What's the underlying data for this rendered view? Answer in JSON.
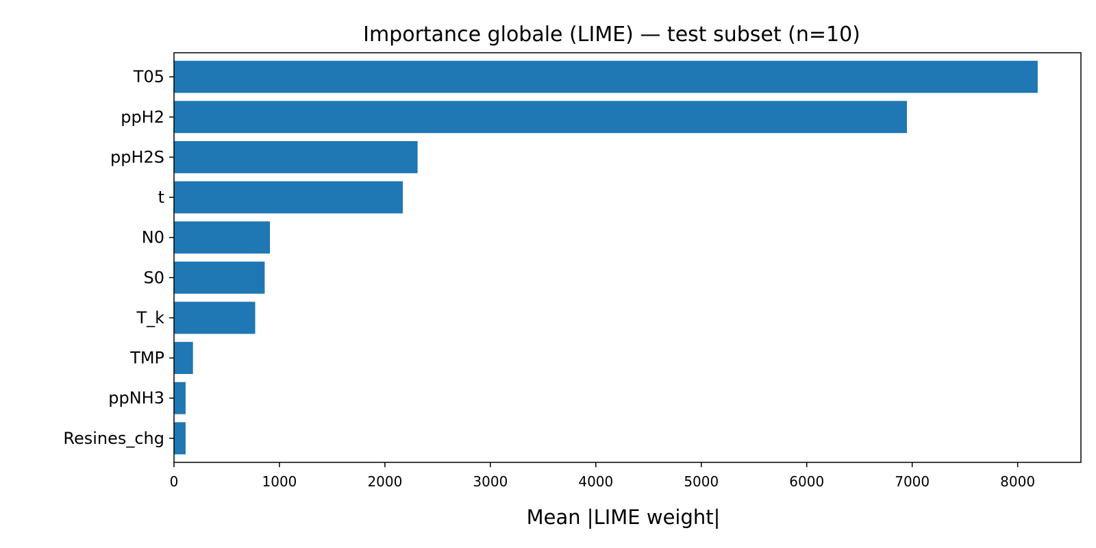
{
  "chart_data": {
    "type": "bar",
    "orientation": "horizontal",
    "title": "Importance globale (LIME) — test subset (n=10)",
    "xlabel": "Mean |LIME weight|",
    "ylabel": "",
    "categories": [
      "T05",
      "ppH2",
      "ppH2S",
      "t",
      "N0",
      "S0",
      "T_k",
      "TMP",
      "ppNH3",
      "Resines_chg"
    ],
    "values": [
      8190,
      6950,
      2310,
      2170,
      910,
      860,
      770,
      180,
      110,
      110
    ],
    "xlim": [
      0,
      8600
    ],
    "xticks": [
      0,
      1000,
      2000,
      3000,
      4000,
      5000,
      6000,
      7000,
      8000
    ],
    "xtick_labels": [
      "0",
      "1000",
      "2000",
      "3000",
      "4000",
      "5000",
      "6000",
      "7000",
      "8000"
    ],
    "grid": false,
    "legend": "none",
    "bar_color": "#1f77b4"
  }
}
